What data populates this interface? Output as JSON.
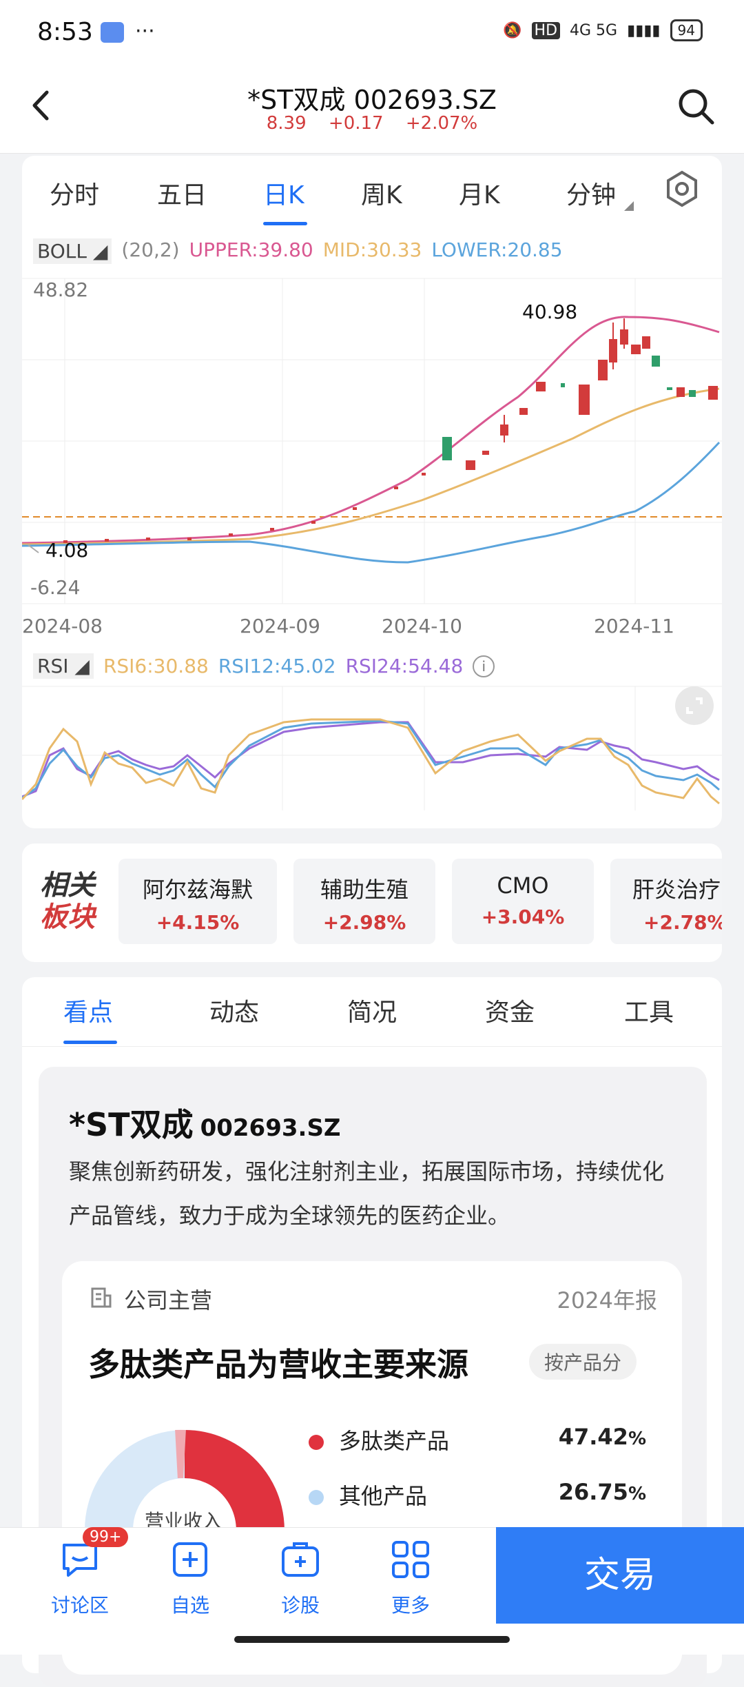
{
  "status": {
    "time": "8:53",
    "network": "4G 5G",
    "battery": "94",
    "dots": "···",
    "hd": "HD"
  },
  "header": {
    "title": "*ST双成 002693.SZ",
    "price": "8.39",
    "change": "+0.17",
    "change_pct": "+2.07%"
  },
  "chart_tabs": [
    "分时",
    "五日",
    "日K",
    "周K",
    "月K",
    "分钟"
  ],
  "boll": {
    "name": "BOLL",
    "params": "(20,2)",
    "upper": "UPPER:39.80",
    "mid": "MID:30.33",
    "lower": "LOWER:20.85"
  },
  "price_axis": {
    "top": "48.82",
    "bottom": "-6.24",
    "high_label": "40.98",
    "low_label": "4.08"
  },
  "x_axis": [
    "2024-08",
    "2024-09",
    "2024-10",
    "2024-11"
  ],
  "rsi": {
    "name": "RSI",
    "rsi6": "RSI6:30.88",
    "rsi12": "RSI12:45.02",
    "rsi24": "RSI24:54.48",
    "info": "i"
  },
  "colors": {
    "up": "#d23b3b",
    "down": "#2f9e6a",
    "upper": "#d95891",
    "mid": "#e8b96a",
    "lower": "#5ba4dc",
    "rsi6": "#e8b96a",
    "rsi12": "#5ba4dc",
    "rsi24": "#9a6ad8",
    "accent": "#1f6ff5"
  },
  "related": {
    "title1": "相关",
    "title2": "板块",
    "items": [
      {
        "name": "阿尔兹海默",
        "chg": "+4.15%"
      },
      {
        "name": "辅助生殖",
        "chg": "+2.98%"
      },
      {
        "name": "CMO",
        "chg": "+3.04%"
      },
      {
        "name": "肝炎治疗",
        "chg": "+2.78%"
      }
    ]
  },
  "info_tabs": [
    "看点",
    "动态",
    "简况",
    "资金",
    "工具"
  ],
  "summary": {
    "name": "*ST双成",
    "code": "002693.SZ",
    "desc": "聚焦创新药研发，强化注射剂主业，拓展国际市场，持续优化产品管线，致力于成为全球领先的医药企业。"
  },
  "business": {
    "label": "公司主营",
    "year": "2024年报",
    "headline": "多肽类产品为营收主要来源",
    "chip": "按产品分",
    "center_label": "营业收入",
    "legend": [
      {
        "name": "多肽类产品",
        "value": "47.42",
        "unit": "%",
        "color": "#e0323e"
      },
      {
        "name": "其他产品",
        "value": "26.75",
        "unit": "%",
        "color": "#b7d7f5"
      }
    ]
  },
  "bottom_nav": [
    {
      "label": "讨论区",
      "icon": "chat-icon"
    },
    {
      "label": "自选",
      "icon": "add-watchlist-icon"
    },
    {
      "label": "诊股",
      "icon": "diagnose-icon"
    },
    {
      "label": "更多",
      "icon": "grid-icon"
    }
  ],
  "badge": "99+",
  "trade_label": "交易"
}
